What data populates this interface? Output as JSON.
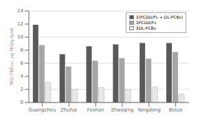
{
  "chart_data": {
    "type": "bar",
    "ylabel": "TEQ (TEF₂₀₀‵, pg TEQ/g lipid)",
    "categories": [
      "Guangzhou",
      "Zhuhai",
      "Foshan",
      "Zhaoqing",
      "Yangdong",
      "Boluo"
    ],
    "series": [
      {
        "name": "Σ(PCDD/Fs + DL-PCBs)",
        "color": "#595959",
        "values": [
          11.9,
          7.4,
          8.6,
          8.9,
          9.1,
          9.1
        ]
      },
      {
        "name": "ΣPCDD/Fs",
        "color": "#a5a5a5",
        "values": [
          8.8,
          5.5,
          6.4,
          6.8,
          6.7,
          7.7
        ]
      },
      {
        "name": "ΣDL-PCBs",
        "color": "#e8e8e8",
        "values": [
          3.1,
          2.0,
          2.3,
          2.0,
          2.4,
          1.3
        ]
      }
    ],
    "ylim": [
      0,
      14
    ],
    "yticks": [
      0,
      2,
      4,
      6,
      8,
      10,
      12,
      14
    ],
    "grid": true,
    "legend": "upper right"
  }
}
